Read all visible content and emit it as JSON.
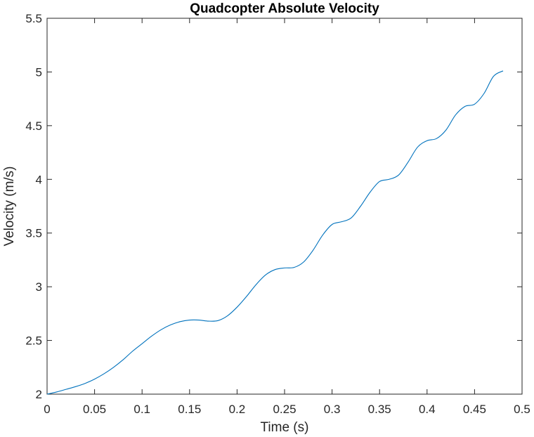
{
  "chart_data": {
    "type": "line",
    "title": "Quadcopter Absolute Velocity",
    "xlabel": "Time (s)",
    "ylabel": "Velocity (m/s)",
    "xlim": [
      0,
      0.5
    ],
    "ylim": [
      2,
      5.5
    ],
    "xticks": [
      0,
      0.05,
      0.1,
      0.15,
      0.2,
      0.25,
      0.3,
      0.35,
      0.4,
      0.45,
      0.5
    ],
    "xtick_labels": [
      "0",
      "0.05",
      "0.1",
      "0.15",
      "0.2",
      "0.25",
      "0.3",
      "0.35",
      "0.4",
      "0.45",
      "0.5"
    ],
    "yticks": [
      2,
      2.5,
      3,
      3.5,
      4,
      4.5,
      5,
      5.5
    ],
    "ytick_labels": [
      "2",
      "2.5",
      "3",
      "3.5",
      "4",
      "4.5",
      "5",
      "5.5"
    ],
    "grid": false,
    "legend": "none",
    "series": [
      {
        "color": "#0072BD",
        "x": [
          0,
          0.01,
          0.02,
          0.03,
          0.04,
          0.05,
          0.06,
          0.07,
          0.08,
          0.09,
          0.1,
          0.11,
          0.12,
          0.13,
          0.14,
          0.15,
          0.16,
          0.17,
          0.18,
          0.19,
          0.2,
          0.21,
          0.22,
          0.23,
          0.24,
          0.25,
          0.26,
          0.27,
          0.28,
          0.29,
          0.3,
          0.31,
          0.32,
          0.33,
          0.34,
          0.35,
          0.36,
          0.37,
          0.38,
          0.39,
          0.4,
          0.41,
          0.42,
          0.43,
          0.44,
          0.45,
          0.46,
          0.47,
          0.48
        ],
        "y": [
          2.0,
          2.02,
          2.045,
          2.07,
          2.1,
          2.14,
          2.19,
          2.25,
          2.32,
          2.4,
          2.47,
          2.54,
          2.6,
          2.645,
          2.675,
          2.69,
          2.69,
          2.68,
          2.685,
          2.73,
          2.81,
          2.91,
          3.02,
          3.11,
          3.16,
          3.175,
          3.18,
          3.23,
          3.34,
          3.48,
          3.58,
          3.605,
          3.64,
          3.75,
          3.88,
          3.98,
          4.0,
          4.04,
          4.16,
          4.3,
          4.36,
          4.38,
          4.46,
          4.6,
          4.68,
          4.7,
          4.8,
          4.96,
          5.01
        ]
      }
    ]
  }
}
